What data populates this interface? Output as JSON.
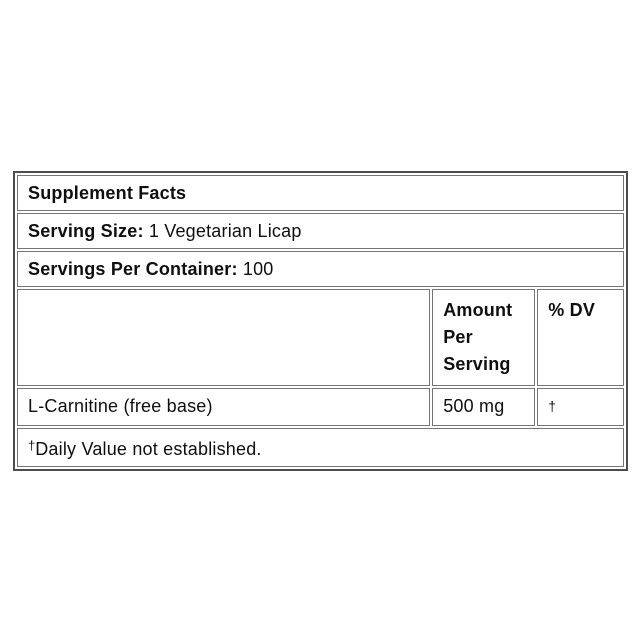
{
  "label": {
    "title": "Supplement Facts",
    "serving_size": {
      "label": "Serving Size:",
      "value": "1 Vegetarian Licap"
    },
    "servings_per_container": {
      "label": "Servings Per Container:",
      "value": "100"
    },
    "columns": {
      "amount_header": "Amount Per Serving",
      "dv_header": "% DV"
    },
    "rows": [
      {
        "name": "L-Carnitine (free base)",
        "amount": "500 mg",
        "dv": "†"
      }
    ],
    "footnote": {
      "dagger": "†",
      "text": "Daily Value not established."
    },
    "colors": {
      "background": "#ffffff",
      "text": "#0f0f0f",
      "border_outer": "#4d4d4d",
      "border_inner": "#757575"
    }
  }
}
